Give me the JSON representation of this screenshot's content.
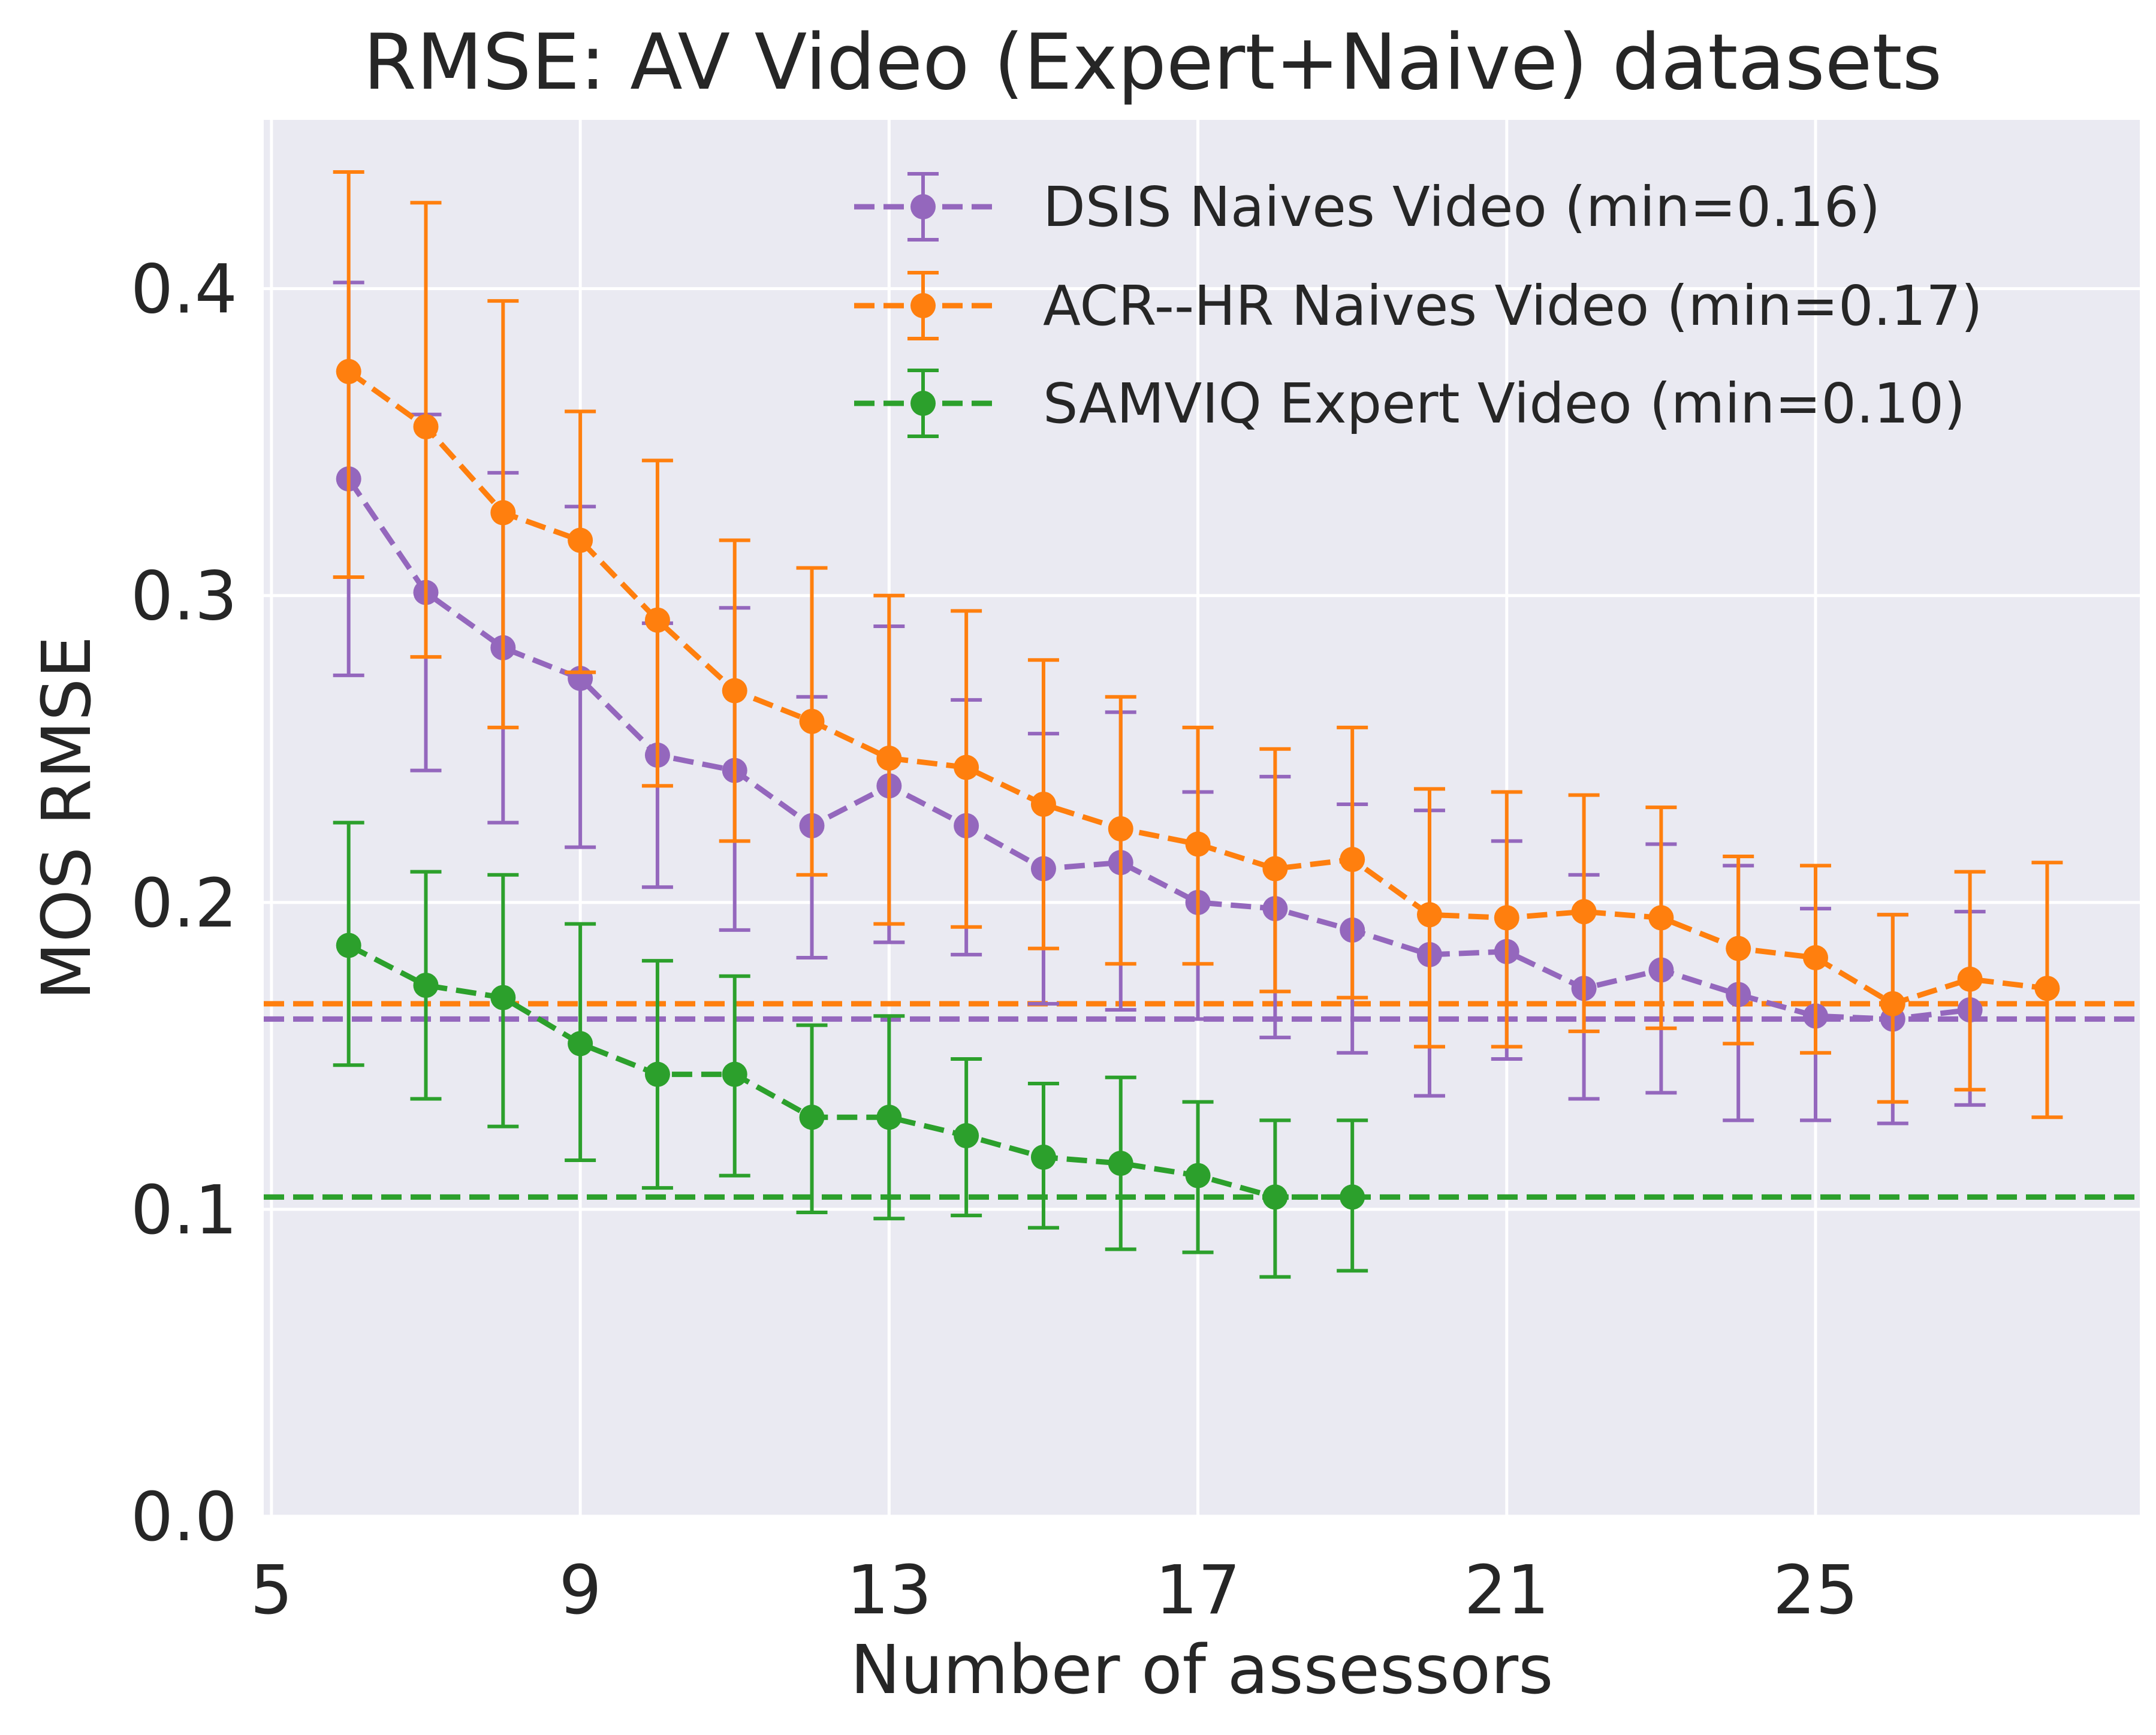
{
  "chart_data": {
    "type": "line",
    "title": "RMSE: AV Video (Expert+Naive) datasets",
    "xlabel": "Number of assessors",
    "ylabel": "MOS RMSE",
    "xlim": [
      4.9,
      29.2
    ],
    "ylim": [
      0.0,
      0.455
    ],
    "xticks": [
      "5",
      "9",
      "13",
      "17",
      "21",
      "25"
    ],
    "xtick_values": [
      5,
      9,
      13,
      17,
      21,
      25
    ],
    "yticks": [
      "0.0",
      "0.1",
      "0.2",
      "0.3",
      "0.4"
    ],
    "ytick_values": [
      0.0,
      0.1,
      0.2,
      0.3,
      0.4
    ],
    "grid": true,
    "background": "#eaeaf2",
    "legend_position": "top-right",
    "series": [
      {
        "name": "DSIS Naives Video (min=0.16)",
        "color": "#9467bd",
        "linestyle": "dashed",
        "marker": "circle",
        "min_line": 0.162,
        "x": [
          6,
          7,
          8,
          9,
          10,
          11,
          12,
          13,
          14,
          15,
          16,
          17,
          18,
          19,
          20,
          21,
          22,
          23,
          24,
          25,
          26,
          27
        ],
        "y": [
          0.338,
          0.301,
          0.283,
          0.273,
          0.248,
          0.243,
          0.225,
          0.238,
          0.225,
          0.211,
          0.213,
          0.2,
          0.198,
          0.191,
          0.183,
          0.184,
          0.172,
          0.178,
          0.17,
          0.163,
          0.162,
          0.165
        ],
        "err_low": [
          0.274,
          0.243,
          0.226,
          0.218,
          0.205,
          0.191,
          0.182,
          0.187,
          0.183,
          0.167,
          0.165,
          0.162,
          0.156,
          0.151,
          0.137,
          0.149,
          0.136,
          0.138,
          0.129,
          0.129,
          0.128,
          0.134
        ],
        "err_high": [
          0.402,
          0.359,
          0.34,
          0.329,
          0.291,
          0.296,
          0.267,
          0.29,
          0.266,
          0.255,
          0.262,
          0.236,
          0.241,
          0.232,
          0.23,
          0.22,
          0.209,
          0.219,
          0.212,
          0.198,
          0.196,
          0.197
        ]
      },
      {
        "name": "ACR--HR Naives Video (min=0.17)",
        "color": "#ff7f0e",
        "linestyle": "dashed",
        "marker": "circle",
        "min_line": 0.167,
        "x": [
          6,
          7,
          8,
          9,
          10,
          11,
          12,
          13,
          14,
          15,
          16,
          17,
          18,
          19,
          20,
          21,
          22,
          23,
          24,
          25,
          26,
          27,
          28
        ],
        "y": [
          0.373,
          0.355,
          0.327,
          0.318,
          0.292,
          0.269,
          0.259,
          0.247,
          0.244,
          0.232,
          0.224,
          0.219,
          0.211,
          0.214,
          0.196,
          0.195,
          0.197,
          0.195,
          0.185,
          0.182,
          0.167,
          0.175,
          0.172
        ],
        "err_low": [
          0.306,
          0.28,
          0.257,
          0.275,
          0.238,
          0.22,
          0.209,
          0.193,
          0.192,
          0.185,
          0.18,
          0.18,
          0.171,
          0.169,
          0.153,
          0.153,
          0.158,
          0.159,
          0.154,
          0.151,
          0.135,
          0.139,
          0.13
        ],
        "err_high": [
          0.438,
          0.428,
          0.396,
          0.36,
          0.344,
          0.318,
          0.309,
          0.3,
          0.295,
          0.279,
          0.267,
          0.257,
          0.25,
          0.257,
          0.237,
          0.236,
          0.235,
          0.231,
          0.215,
          0.212,
          0.196,
          0.21,
          0.213
        ]
      },
      {
        "name": "SAMVIQ Expert Video (min=0.10)",
        "color": "#2ca02c",
        "linestyle": "dashed",
        "marker": "circle",
        "min_line": 0.104,
        "x": [
          6,
          7,
          8,
          9,
          10,
          11,
          12,
          13,
          14,
          15,
          16,
          17,
          18,
          19
        ],
        "y": [
          0.186,
          0.173,
          0.169,
          0.154,
          0.144,
          0.144,
          0.13,
          0.13,
          0.124,
          0.117,
          0.115,
          0.111,
          0.104,
          0.104
        ],
        "err_low": [
          0.147,
          0.136,
          0.127,
          0.116,
          0.107,
          0.111,
          0.099,
          0.097,
          0.098,
          0.094,
          0.087,
          0.086,
          0.078,
          0.08
        ],
        "err_high": [
          0.226,
          0.21,
          0.209,
          0.193,
          0.181,
          0.176,
          0.16,
          0.163,
          0.149,
          0.141,
          0.143,
          0.135,
          0.129,
          0.129
        ]
      }
    ]
  }
}
